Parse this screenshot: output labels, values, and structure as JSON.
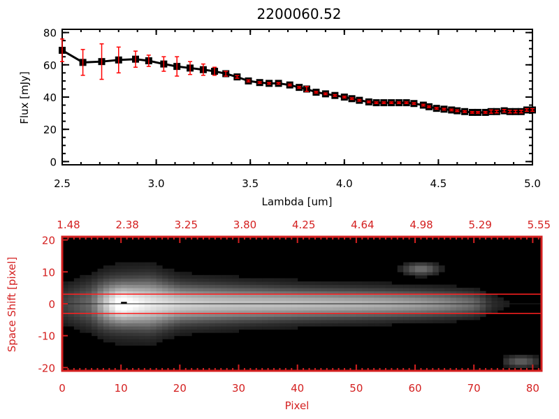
{
  "chart_data": [
    {
      "type": "line",
      "title": "2200060.52",
      "xlabel": "Lambda [um]",
      "ylabel": "Flux [mJy]",
      "xlim": [
        2.5,
        5.0
      ],
      "ylim": [
        -2,
        82
      ],
      "xticks": [
        "2.5",
        "3.0",
        "3.5",
        "4.0",
        "4.5",
        "5.0"
      ],
      "xtick_values": [
        2.5,
        3.0,
        3.5,
        4.0,
        4.5,
        5.0
      ],
      "yticks": [
        "0",
        "20",
        "40",
        "60",
        "80"
      ],
      "ytick_values": [
        0,
        20,
        40,
        60,
        80
      ],
      "line_color": "#000000",
      "error_color": "#ff0000",
      "x": [
        2.5,
        2.61,
        2.71,
        2.8,
        2.89,
        2.96,
        3.04,
        3.11,
        3.18,
        3.25,
        3.31,
        3.37,
        3.43,
        3.49,
        3.55,
        3.6,
        3.65,
        3.71,
        3.76,
        3.8,
        3.85,
        3.9,
        3.95,
        4.0,
        4.04,
        4.08,
        4.13,
        4.17,
        4.21,
        4.25,
        4.29,
        4.33,
        4.37,
        4.42,
        4.45,
        4.49,
        4.53,
        4.57,
        4.6,
        4.64,
        4.68,
        4.71,
        4.75,
        4.78,
        4.81,
        4.85,
        4.88,
        4.91,
        4.94,
        4.97,
        5.0
      ],
      "y": [
        69,
        61.5,
        62,
        63,
        63.5,
        62.5,
        60.5,
        59,
        58,
        57,
        56,
        54.5,
        52.5,
        50,
        49,
        48.5,
        48.5,
        47.5,
        46,
        45,
        43,
        42,
        41,
        40,
        39,
        38,
        37,
        36.5,
        36.5,
        36.5,
        36.5,
        36.5,
        36,
        35,
        34,
        33,
        32.5,
        32,
        31.5,
        31,
        30.5,
        30.5,
        30.5,
        31,
        31,
        31.5,
        31,
        31,
        31,
        32,
        32
      ],
      "yerr": [
        7,
        8,
        11,
        8,
        5,
        3.5,
        4.5,
        6,
        4,
        3.5,
        2.5,
        1.5,
        0.8,
        0.6,
        0.5,
        0.5,
        0.5,
        0.5,
        0.5,
        1.5,
        0.5,
        0.5,
        0.5,
        0.5,
        0.5,
        0.5,
        0.5,
        0.5,
        0.5,
        0.5,
        0.5,
        0.5,
        0.5,
        0.5,
        0.5,
        0.5,
        0.5,
        0.5,
        0.5,
        0.5,
        0.5,
        0.5,
        0.5,
        1,
        0.8,
        0.8,
        0.8,
        0.8,
        0.8,
        0.8,
        0.8
      ]
    },
    {
      "type": "heatmap",
      "xlabel": "Pixel",
      "ylabel": "Space Shift [pixel]",
      "xlim": [
        0,
        81.5
      ],
      "ylim": [
        -21,
        21
      ],
      "xticks": [
        "0",
        "10",
        "20",
        "30",
        "40",
        "50",
        "60",
        "70",
        "80"
      ],
      "xtick_values": [
        0,
        10,
        20,
        30,
        40,
        50,
        60,
        70,
        80
      ],
      "top_xticks": [
        "1.48",
        "2.38",
        "3.25",
        "3.80",
        "4.25",
        "4.64",
        "4.98",
        "5.29",
        "5.55"
      ],
      "yticks": [
        "20",
        "10",
        "0",
        "-10",
        "-20"
      ],
      "ytick_values": [
        20,
        10,
        0,
        -10,
        -20
      ],
      "axis_color": "#d42020",
      "aperture_lines": [
        3,
        -3
      ],
      "center_line": 0,
      "trace_peak_columns": [
        0,
        5,
        8,
        10,
        12,
        15,
        20,
        25,
        30,
        40,
        50,
        55,
        60,
        65,
        70,
        73,
        76,
        81
      ],
      "trace_peak_values": [
        0.15,
        0.3,
        0.75,
        1.0,
        0.9,
        0.8,
        0.7,
        0.66,
        0.64,
        0.62,
        0.58,
        0.55,
        0.5,
        0.42,
        0.3,
        0.1,
        0.05,
        0.05
      ],
      "trace_width": [
        0,
        5,
        10,
        15,
        20,
        40,
        60,
        81
      ],
      "trace_width_values": [
        4,
        4.5,
        4,
        4.5,
        3.5,
        2.8,
        2.5,
        2.3
      ],
      "blobs": [
        {
          "x": 61,
          "y": 11,
          "amp": 0.35
        },
        {
          "x": 78,
          "y": -18,
          "amp": 0.3
        }
      ]
    }
  ]
}
